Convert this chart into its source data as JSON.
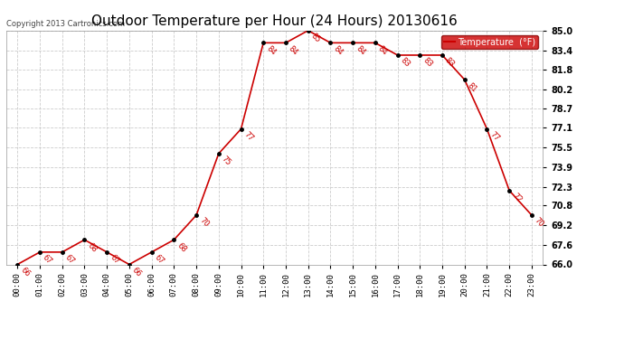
{
  "title": "Outdoor Temperature per Hour (24 Hours) 20130616",
  "copyright": "Copyright 2013 Cartronics.com",
  "legend_label": "Temperature  (°F)",
  "hours": [
    0,
    1,
    2,
    3,
    4,
    5,
    6,
    7,
    8,
    9,
    10,
    11,
    12,
    13,
    14,
    15,
    16,
    17,
    18,
    19,
    20,
    21,
    22,
    23
  ],
  "hour_labels": [
    "00:00",
    "01:00",
    "02:00",
    "03:00",
    "04:00",
    "05:00",
    "06:00",
    "07:00",
    "08:00",
    "09:00",
    "10:00",
    "11:00",
    "12:00",
    "13:00",
    "14:00",
    "15:00",
    "16:00",
    "17:00",
    "18:00",
    "19:00",
    "20:00",
    "21:00",
    "22:00",
    "23:00"
  ],
  "temps": [
    66,
    67,
    67,
    68,
    67,
    66,
    67,
    68,
    70,
    75,
    77,
    84,
    84,
    85,
    84,
    84,
    84,
    83,
    83,
    83,
    81,
    77,
    72,
    70
  ],
  "ylim": [
    66.0,
    85.0
  ],
  "yticks": [
    66.0,
    67.6,
    69.2,
    70.8,
    72.3,
    73.9,
    75.5,
    77.1,
    78.7,
    80.2,
    81.8,
    83.4,
    85.0
  ],
  "line_color": "#cc0000",
  "marker_color": "#000000",
  "grid_color": "#cccccc",
  "bg_color": "#ffffff",
  "title_fontsize": 11,
  "legend_bg": "#cc0000",
  "legend_text_color": "#ffffff"
}
